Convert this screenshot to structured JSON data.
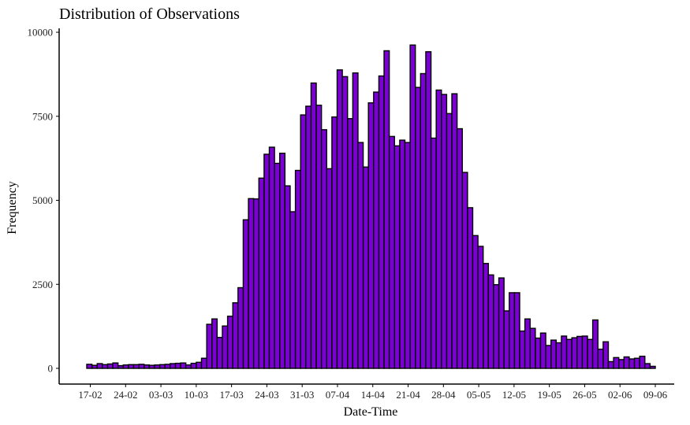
{
  "chart_data": {
    "type": "bar",
    "title": "Distribution of Observations",
    "xlabel": "Date-Time",
    "ylabel": "Frequency",
    "ylim": [
      0,
      10000
    ],
    "yticks": [
      0,
      2500,
      5000,
      7500,
      10000
    ],
    "ytick_labels": [
      "0",
      "2500",
      "5000",
      "7500",
      "10000"
    ],
    "xticks": [
      "17-02",
      "24-02",
      "03-03",
      "10-03",
      "17-03",
      "24-03",
      "31-03",
      "07-04",
      "14-04",
      "21-04",
      "28-04",
      "05-05",
      "12-05",
      "19-05",
      "26-05",
      "02-06",
      "09-06"
    ],
    "bar_fill": "#7B00D4",
    "bar_stroke": "#000000",
    "values": [
      120,
      90,
      140,
      110,
      130,
      160,
      80,
      100,
      110,
      110,
      120,
      100,
      90,
      100,
      110,
      120,
      140,
      150,
      160,
      100,
      150,
      180,
      300,
      1310,
      1470,
      920,
      1260,
      1550,
      1950,
      2400,
      4420,
      5050,
      5040,
      5660,
      6370,
      6580,
      6100,
      6400,
      5430,
      4660,
      5890,
      7540,
      7800,
      8490,
      7830,
      7100,
      5940,
      7480,
      8880,
      8680,
      7430,
      8790,
      6720,
      5990,
      7900,
      8220,
      8700,
      9450,
      6900,
      6620,
      6790,
      6720,
      9620,
      8360,
      8770,
      9420,
      6850,
      8280,
      8150,
      7580,
      8170,
      7130,
      5830,
      4780,
      3950,
      3630,
      3120,
      2780,
      2490,
      2690,
      1710,
      2250,
      2250,
      1110,
      1470,
      1190,
      900,
      1050,
      680,
      840,
      760,
      960,
      860,
      910,
      950,
      960,
      860,
      1440,
      570,
      790,
      200,
      320,
      260,
      340,
      280,
      300,
      360,
      140,
      60
    ]
  }
}
